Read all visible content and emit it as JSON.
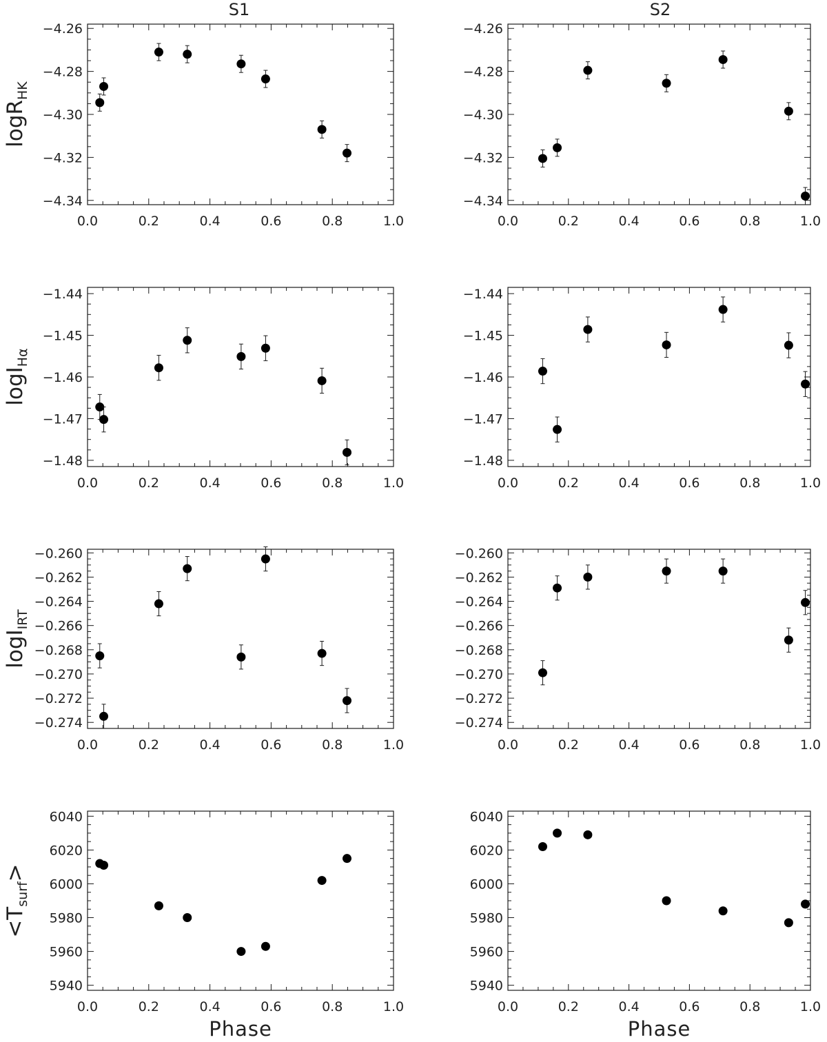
{
  "figure": {
    "column_titles": [
      "S1",
      "S2"
    ]
  },
  "chart_data": [
    {
      "type": "scatter",
      "panel": "S1",
      "row": 0,
      "title": "S1",
      "xlabel": "",
      "ylabel": "logR_HK",
      "ylabel_main": "logR",
      "ylabel_sub": "HK",
      "ylabel_wrap": "",
      "xlim": [
        0.0,
        1.0
      ],
      "ylim": [
        -4.342,
        -4.258
      ],
      "xticks": [
        0.0,
        0.2,
        0.4,
        0.6,
        0.8,
        1.0
      ],
      "xtick_labels": [
        "0.0",
        "0.2",
        "0.4",
        "0.6",
        "0.8",
        "1.0"
      ],
      "yticks": [
        -4.34,
        -4.32,
        -4.3,
        -4.28,
        -4.26
      ],
      "ytick_labels": [
        "−4.34",
        "−4.32",
        "−4.30",
        "−4.28",
        "−4.26"
      ],
      "grid": false,
      "error_bars": true,
      "points": [
        {
          "x": 0.04,
          "y": -4.2945,
          "err": 0.004
        },
        {
          "x": 0.053,
          "y": -4.287,
          "err": 0.004
        },
        {
          "x": 0.233,
          "y": -4.271,
          "err": 0.004
        },
        {
          "x": 0.326,
          "y": -4.272,
          "err": 0.004
        },
        {
          "x": 0.502,
          "y": -4.2765,
          "err": 0.004
        },
        {
          "x": 0.582,
          "y": -4.2835,
          "err": 0.004
        },
        {
          "x": 0.766,
          "y": -4.307,
          "err": 0.004
        },
        {
          "x": 0.848,
          "y": -4.318,
          "err": 0.004
        }
      ]
    },
    {
      "type": "scatter",
      "panel": "S2",
      "row": 0,
      "title": "S2",
      "xlabel": "",
      "ylabel": "",
      "ylabel_main": "",
      "ylabel_sub": "",
      "ylabel_wrap": "",
      "xlim": [
        0.0,
        1.0
      ],
      "ylim": [
        -4.342,
        -4.258
      ],
      "xticks": [
        0.0,
        0.2,
        0.4,
        0.6,
        0.8,
        1.0
      ],
      "xtick_labels": [
        "0.0",
        "0.2",
        "0.4",
        "0.6",
        "0.8",
        "1.0"
      ],
      "yticks": [
        -4.34,
        -4.32,
        -4.3,
        -4.28,
        -4.26
      ],
      "ytick_labels": [
        "−4.34",
        "−4.32",
        "−4.30",
        "−4.28",
        "−4.26"
      ],
      "grid": false,
      "error_bars": true,
      "points": [
        {
          "x": 0.115,
          "y": -4.3205,
          "err": 0.004
        },
        {
          "x": 0.163,
          "y": -4.3155,
          "err": 0.004
        },
        {
          "x": 0.264,
          "y": -4.2795,
          "err": 0.004
        },
        {
          "x": 0.524,
          "y": -4.2855,
          "err": 0.004
        },
        {
          "x": 0.711,
          "y": -4.2745,
          "err": 0.004
        },
        {
          "x": 0.928,
          "y": -4.2985,
          "err": 0.004
        },
        {
          "x": 0.983,
          "y": -4.338,
          "err": 0.004
        }
      ]
    },
    {
      "type": "scatter",
      "panel": "S1",
      "row": 1,
      "title": "",
      "xlabel": "",
      "ylabel": "logI_Hα",
      "ylabel_main": "logI",
      "ylabel_sub": "Hα",
      "ylabel_wrap": "",
      "xlim": [
        0.0,
        1.0
      ],
      "ylim": [
        -1.4815,
        -1.4385
      ],
      "xticks": [
        0.0,
        0.2,
        0.4,
        0.6,
        0.8,
        1.0
      ],
      "xtick_labels": [
        "0.0",
        "0.2",
        "0.4",
        "0.6",
        "0.8",
        "1.0"
      ],
      "yticks": [
        -1.48,
        -1.47,
        -1.46,
        -1.45,
        -1.44
      ],
      "ytick_labels": [
        "−1.48",
        "−1.47",
        "−1.46",
        "−1.45",
        "−1.44"
      ],
      "grid": false,
      "error_bars": true,
      "points": [
        {
          "x": 0.04,
          "y": -1.4672,
          "err": 0.003
        },
        {
          "x": 0.053,
          "y": -1.4702,
          "err": 0.003
        },
        {
          "x": 0.233,
          "y": -1.4578,
          "err": 0.003
        },
        {
          "x": 0.326,
          "y": -1.4512,
          "err": 0.003
        },
        {
          "x": 0.502,
          "y": -1.4551,
          "err": 0.003
        },
        {
          "x": 0.582,
          "y": -1.4531,
          "err": 0.003
        },
        {
          "x": 0.766,
          "y": -1.4609,
          "err": 0.003
        },
        {
          "x": 0.848,
          "y": -1.4781,
          "err": 0.003
        }
      ]
    },
    {
      "type": "scatter",
      "panel": "S2",
      "row": 1,
      "title": "",
      "xlabel": "",
      "ylabel": "",
      "ylabel_main": "",
      "ylabel_sub": "",
      "ylabel_wrap": "",
      "xlim": [
        0.0,
        1.0
      ],
      "ylim": [
        -1.4815,
        -1.4385
      ],
      "xticks": [
        0.0,
        0.2,
        0.4,
        0.6,
        0.8,
        1.0
      ],
      "xtick_labels": [
        "0.0",
        "0.2",
        "0.4",
        "0.6",
        "0.8",
        "1.0"
      ],
      "yticks": [
        -1.48,
        -1.47,
        -1.46,
        -1.45,
        -1.44
      ],
      "ytick_labels": [
        "−1.48",
        "−1.47",
        "−1.46",
        "−1.45",
        "−1.44"
      ],
      "grid": false,
      "error_bars": true,
      "points": [
        {
          "x": 0.115,
          "y": -1.4586,
          "err": 0.003
        },
        {
          "x": 0.163,
          "y": -1.4726,
          "err": 0.003
        },
        {
          "x": 0.264,
          "y": -1.4486,
          "err": 0.003
        },
        {
          "x": 0.524,
          "y": -1.4523,
          "err": 0.003
        },
        {
          "x": 0.711,
          "y": -1.4438,
          "err": 0.003
        },
        {
          "x": 0.928,
          "y": -1.4524,
          "err": 0.003
        },
        {
          "x": 0.983,
          "y": -1.4617,
          "err": 0.003
        }
      ]
    },
    {
      "type": "scatter",
      "panel": "S1",
      "row": 2,
      "title": "",
      "xlabel": "",
      "ylabel": "logI_IRT",
      "ylabel_main": "logI",
      "ylabel_sub": "IRT",
      "ylabel_wrap": "",
      "xlim": [
        0.0,
        1.0
      ],
      "ylim": [
        -0.2745,
        -0.2597
      ],
      "xticks": [
        0.0,
        0.2,
        0.4,
        0.6,
        0.8,
        1.0
      ],
      "xtick_labels": [
        "0.0",
        "0.2",
        "0.4",
        "0.6",
        "0.8",
        "1.0"
      ],
      "yticks": [
        -0.274,
        -0.272,
        -0.27,
        -0.268,
        -0.266,
        -0.264,
        -0.262,
        -0.26
      ],
      "ytick_labels": [
        "−0.274",
        "−0.272",
        "−0.270",
        "−0.268",
        "−0.266",
        "−0.264",
        "−0.262",
        "−0.260"
      ],
      "grid": false,
      "error_bars": true,
      "points": [
        {
          "x": 0.04,
          "y": -0.2685,
          "err": 0.001
        },
        {
          "x": 0.053,
          "y": -0.2735,
          "err": 0.001
        },
        {
          "x": 0.233,
          "y": -0.2642,
          "err": 0.001
        },
        {
          "x": 0.326,
          "y": -0.2613,
          "err": 0.001
        },
        {
          "x": 0.502,
          "y": -0.2686,
          "err": 0.001
        },
        {
          "x": 0.582,
          "y": -0.2605,
          "err": 0.001
        },
        {
          "x": 0.766,
          "y": -0.2683,
          "err": 0.001
        },
        {
          "x": 0.848,
          "y": -0.2722,
          "err": 0.001
        }
      ]
    },
    {
      "type": "scatter",
      "panel": "S2",
      "row": 2,
      "title": "",
      "xlabel": "",
      "ylabel": "",
      "ylabel_main": "",
      "ylabel_sub": "",
      "ylabel_wrap": "",
      "xlim": [
        0.0,
        1.0
      ],
      "ylim": [
        -0.2745,
        -0.2597
      ],
      "xticks": [
        0.0,
        0.2,
        0.4,
        0.6,
        0.8,
        1.0
      ],
      "xtick_labels": [
        "0.0",
        "0.2",
        "0.4",
        "0.6",
        "0.8",
        "1.0"
      ],
      "yticks": [
        -0.274,
        -0.272,
        -0.27,
        -0.268,
        -0.266,
        -0.264,
        -0.262,
        -0.26
      ],
      "ytick_labels": [
        "−0.274",
        "−0.272",
        "−0.270",
        "−0.268",
        "−0.266",
        "−0.264",
        "−0.262",
        "−0.260"
      ],
      "grid": false,
      "error_bars": true,
      "points": [
        {
          "x": 0.115,
          "y": -0.2699,
          "err": 0.001
        },
        {
          "x": 0.163,
          "y": -0.2629,
          "err": 0.001
        },
        {
          "x": 0.264,
          "y": -0.262,
          "err": 0.001
        },
        {
          "x": 0.524,
          "y": -0.2615,
          "err": 0.001
        },
        {
          "x": 0.711,
          "y": -0.2615,
          "err": 0.001
        },
        {
          "x": 0.928,
          "y": -0.2672,
          "err": 0.001
        },
        {
          "x": 0.983,
          "y": -0.2641,
          "err": 0.001
        }
      ]
    },
    {
      "type": "scatter",
      "panel": "S1",
      "row": 3,
      "title": "",
      "xlabel": "Phase",
      "ylabel": "<T_surf>",
      "ylabel_main": "T",
      "ylabel_sub": "surf",
      "ylabel_wrap": "angle",
      "xlim": [
        0.0,
        1.0
      ],
      "ylim": [
        5937,
        6043
      ],
      "xticks": [
        0.0,
        0.2,
        0.4,
        0.6,
        0.8,
        1.0
      ],
      "xtick_labels": [
        "0.0",
        "0.2",
        "0.4",
        "0.6",
        "0.8",
        "1.0"
      ],
      "yticks": [
        5940,
        5960,
        5980,
        6000,
        6020,
        6040
      ],
      "ytick_labels": [
        "5940",
        "5960",
        "5980",
        "6000",
        "6020",
        "6040"
      ],
      "grid": false,
      "error_bars": false,
      "points": [
        {
          "x": 0.04,
          "y": 6012,
          "err": 0
        },
        {
          "x": 0.053,
          "y": 6011,
          "err": 0
        },
        {
          "x": 0.233,
          "y": 5987,
          "err": 0
        },
        {
          "x": 0.326,
          "y": 5980,
          "err": 0
        },
        {
          "x": 0.502,
          "y": 5960,
          "err": 0
        },
        {
          "x": 0.582,
          "y": 5963,
          "err": 0
        },
        {
          "x": 0.766,
          "y": 6002,
          "err": 0
        },
        {
          "x": 0.848,
          "y": 6015,
          "err": 0
        }
      ]
    },
    {
      "type": "scatter",
      "panel": "S2",
      "row": 3,
      "title": "",
      "xlabel": "Phase",
      "ylabel": "",
      "ylabel_main": "",
      "ylabel_sub": "",
      "ylabel_wrap": "",
      "xlim": [
        0.0,
        1.0
      ],
      "ylim": [
        5937,
        6043
      ],
      "xticks": [
        0.0,
        0.2,
        0.4,
        0.6,
        0.8,
        1.0
      ],
      "xtick_labels": [
        "0.0",
        "0.2",
        "0.4",
        "0.6",
        "0.8",
        "1.0"
      ],
      "yticks": [
        5940,
        5960,
        5980,
        6000,
        6020,
        6040
      ],
      "ytick_labels": [
        "5940",
        "5960",
        "5980",
        "6000",
        "6020",
        "6040"
      ],
      "grid": false,
      "error_bars": false,
      "points": [
        {
          "x": 0.115,
          "y": 6022,
          "err": 0
        },
        {
          "x": 0.163,
          "y": 6030,
          "err": 0
        },
        {
          "x": 0.264,
          "y": 6029,
          "err": 0
        },
        {
          "x": 0.524,
          "y": 5990,
          "err": 0
        },
        {
          "x": 0.711,
          "y": 5984,
          "err": 0
        },
        {
          "x": 0.928,
          "y": 5977,
          "err": 0
        },
        {
          "x": 0.983,
          "y": 5988,
          "err": 0
        }
      ]
    }
  ]
}
